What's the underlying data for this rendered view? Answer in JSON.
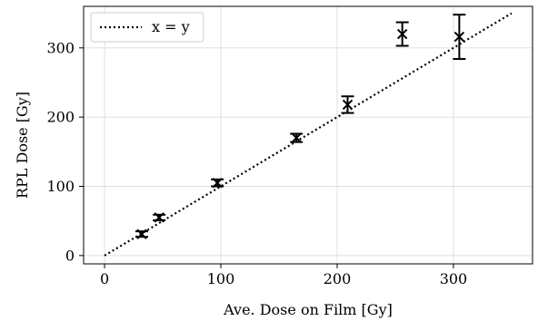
{
  "chart_data": {
    "type": "scatter",
    "xlabel": "Ave. Dose on Film [Gy]",
    "ylabel": "RPL Dose [Gy]",
    "xlim": [
      -18,
      368
    ],
    "ylim": [
      -12,
      360
    ],
    "xticks": [
      0,
      100,
      200,
      300
    ],
    "yticks": [
      0,
      100,
      200,
      300
    ],
    "grid": true,
    "legend_position": "top-left",
    "reference_line": {
      "name": "x = y",
      "from": [
        0,
        0
      ],
      "to": [
        350,
        350
      ],
      "style": "dotted",
      "color": "#000000"
    },
    "points": [
      {
        "x": 32,
        "y": 31,
        "err": 4
      },
      {
        "x": 47,
        "y": 55,
        "err": 4
      },
      {
        "x": 97,
        "y": 105,
        "err": 5
      },
      {
        "x": 165,
        "y": 170,
        "err": 6
      },
      {
        "x": 209,
        "y": 218,
        "err": 12
      },
      {
        "x": 256,
        "y": 320,
        "err": 17
      },
      {
        "x": 305,
        "y": 316,
        "err": 32
      }
    ],
    "marker": "x",
    "color": "#000000"
  }
}
